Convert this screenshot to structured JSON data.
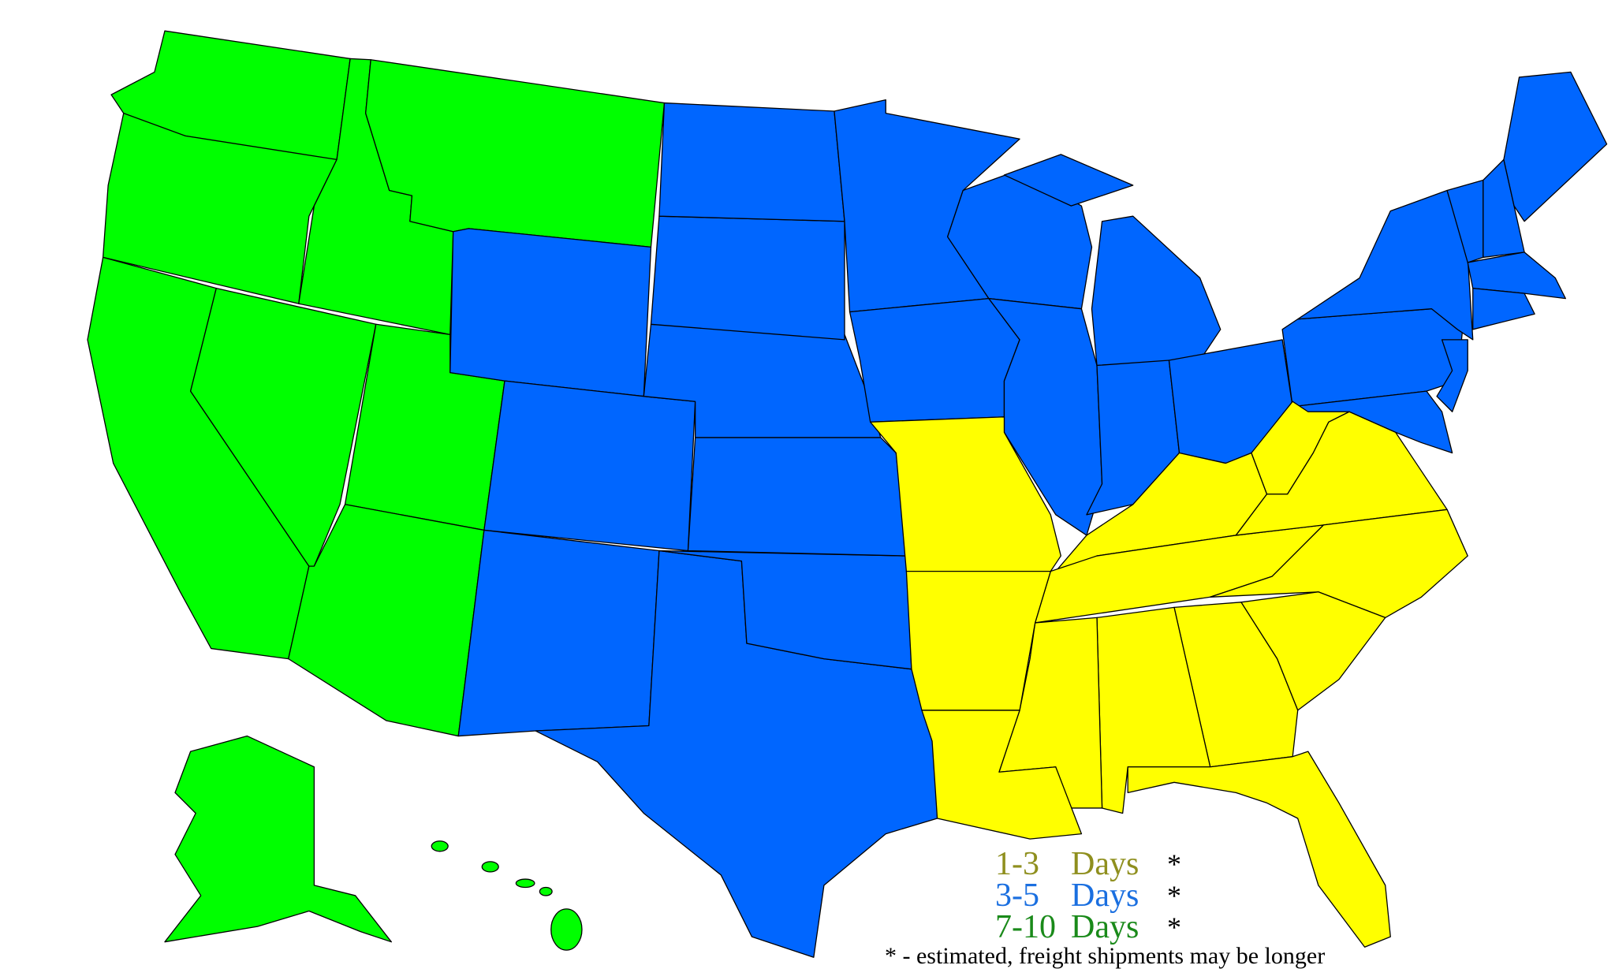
{
  "zones": {
    "zone_1_3": {
      "color": "#ffff00",
      "text_color": "#8f8f1e"
    },
    "zone_3_5": {
      "color": "#0066ff",
      "text_color": "#1a6fe0"
    },
    "zone_7_10": {
      "color": "#00ff00",
      "text_color": "#1a8a1a"
    }
  },
  "legend": {
    "items": [
      {
        "range": "1-3",
        "unit": "Days",
        "mark": "*",
        "zone": "zone_1_3"
      },
      {
        "range": "3-5",
        "unit": "Days",
        "mark": "*",
        "zone": "zone_3_5"
      },
      {
        "range": "7-10",
        "unit": "Days",
        "mark": "*",
        "zone": "zone_7_10"
      }
    ],
    "footnote": "* - estimated, freight shipments may be longer"
  }
}
